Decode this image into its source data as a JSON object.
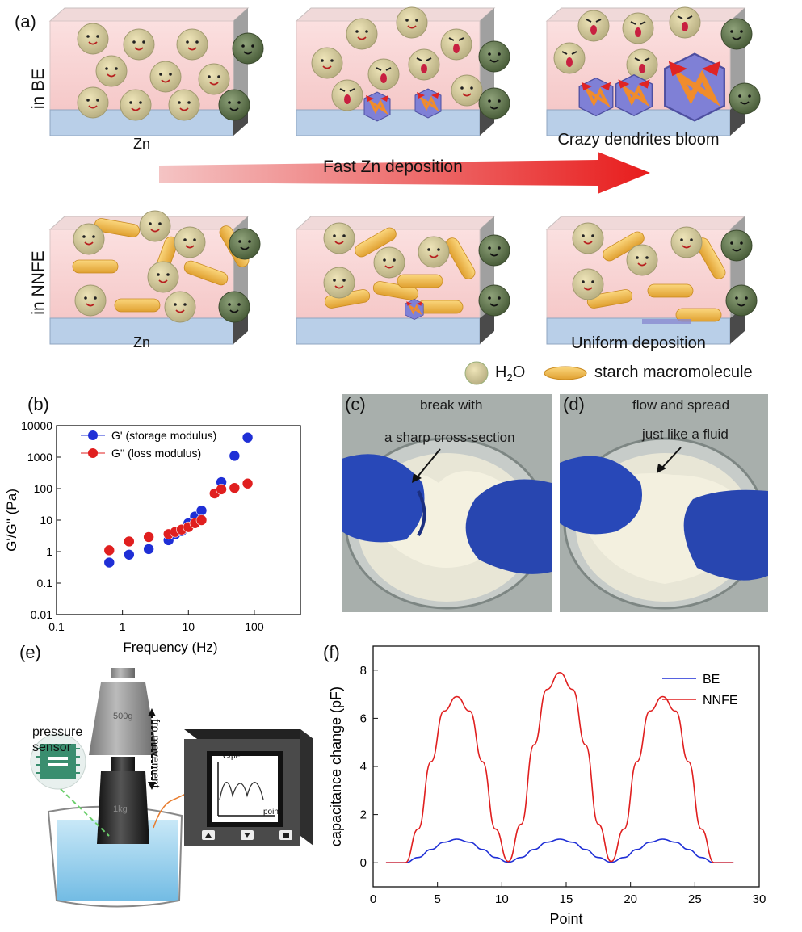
{
  "panels": {
    "a": {
      "label": "(a)",
      "row_labels": [
        "in BE",
        "in NNFE"
      ],
      "substrate_labels": [
        "Zn",
        "Crazy dendrites bloom",
        "Zn",
        "Uniform deposition"
      ],
      "arrow_label": "Fast Zn deposition",
      "legend": {
        "water": "H",
        "water_sub": "2",
        "water_end": "O",
        "starch": "starch macromolecule"
      }
    },
    "b": {
      "label": "(b)"
    },
    "c": {
      "label": "(c)",
      "text_line1": "break with",
      "text_line2": "a sharp cross-section"
    },
    "d": {
      "label": "(d)",
      "text_line1": "flow and spread",
      "text_line2": "just like a fluid"
    },
    "e": {
      "label": "(e)",
      "sensor_label_1": "pressure",
      "sensor_label_2": "sensor",
      "movement_label": "fro movement",
      "screen_y": "C/pF",
      "screen_x": "point",
      "weight_top": "500g",
      "weight_bottom": "1kg"
    },
    "f": {
      "label": "(f)"
    }
  },
  "chart_data": [
    {
      "type": "scatter",
      "xlabel": "Frequency (Hz)",
      "ylabel": "G'/G'' (Pa)",
      "xscale": "log",
      "yscale": "log",
      "xlim": [
        0.1,
        500
      ],
      "ylim": [
        0.01,
        10000
      ],
      "xticks": [
        "0.1",
        "1",
        "10",
        "100"
      ],
      "yticks": [
        "0.01",
        "0.1",
        "1",
        "10",
        "100",
        "1000",
        "10000"
      ],
      "legend_position": "top-left",
      "series": [
        {
          "name": "G' (storage modulus)",
          "color": "#1f2fd6",
          "x": [
            0.63,
            1.26,
            2.5,
            5.0,
            6.3,
            7.9,
            10,
            12.6,
            15.8,
            25,
            31.6,
            50,
            79
          ],
          "y": [
            0.45,
            0.8,
            1.2,
            2.3,
            3.5,
            4.5,
            8,
            13,
            20,
            70,
            160,
            1100,
            4200
          ]
        },
        {
          "name": "G'' (loss modulus)",
          "color": "#e01f1f",
          "x": [
            0.63,
            1.26,
            2.5,
            5.0,
            6.3,
            7.9,
            10,
            12.6,
            15.8,
            25,
            31.6,
            50,
            79
          ],
          "y": [
            1.1,
            2.1,
            2.9,
            3.6,
            4.2,
            5.0,
            6.0,
            8.0,
            10,
            70,
            95,
            105,
            145
          ]
        }
      ]
    },
    {
      "type": "line",
      "xlabel": "Point",
      "ylabel": "capacitance change (pF)",
      "xlim": [
        0,
        30
      ],
      "ylim": [
        -1,
        9
      ],
      "xticks": [
        "0",
        "5",
        "10",
        "15",
        "20",
        "25",
        "30"
      ],
      "yticks": [
        "0",
        "2",
        "4",
        "6",
        "8"
      ],
      "legend_position": "top-right",
      "series": [
        {
          "name": "BE",
          "color": "#1f2fd6",
          "x": [
            1,
            2.5,
            3.5,
            4.5,
            5.5,
            6.5,
            7.5,
            8.5,
            9.5,
            10.5,
            11.5,
            12.5,
            13.5,
            14.5,
            15.5,
            16.5,
            17.5,
            18.5,
            19.5,
            20.5,
            21.5,
            22.5,
            23.5,
            24.5,
            25.5,
            26.5,
            28
          ],
          "y": [
            0,
            0,
            0.22,
            0.55,
            0.85,
            0.98,
            0.85,
            0.55,
            0.22,
            0.02,
            0.22,
            0.55,
            0.85,
            0.98,
            0.85,
            0.55,
            0.22,
            0.02,
            0.22,
            0.55,
            0.85,
            0.98,
            0.85,
            0.55,
            0.22,
            0,
            0
          ]
        },
        {
          "name": "NNFE",
          "color": "#e01f1f",
          "x": [
            1,
            2.5,
            3.5,
            4.5,
            5.5,
            6.5,
            7.5,
            8.5,
            9.5,
            10.5,
            11.5,
            12.5,
            13.5,
            14.5,
            15.5,
            16.5,
            17.5,
            18.5,
            19.5,
            20.5,
            21.5,
            22.5,
            23.5,
            24.5,
            25.5,
            26.5,
            28
          ],
          "y": [
            0,
            0,
            1.4,
            4.2,
            6.3,
            6.9,
            6.3,
            4.2,
            1.4,
            0.05,
            1.6,
            4.9,
            7.2,
            7.9,
            7.2,
            4.9,
            1.6,
            0.05,
            1.4,
            4.2,
            6.3,
            6.9,
            6.3,
            4.2,
            1.4,
            0,
            0
          ]
        }
      ]
    }
  ]
}
